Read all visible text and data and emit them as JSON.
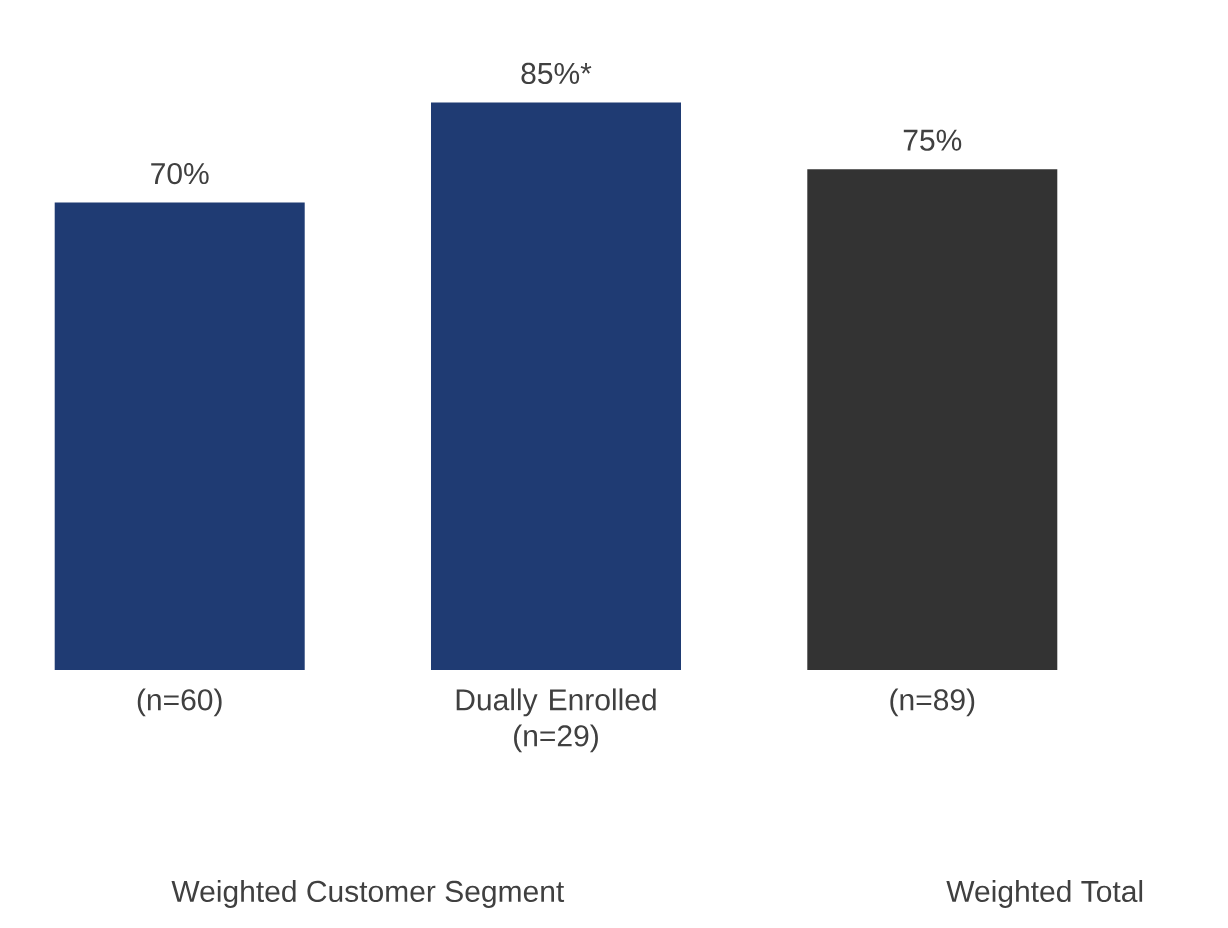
{
  "chart_data": {
    "type": "bar",
    "categories": [
      "(n=60)",
      "Dually Enrolled (n=29)",
      "(n=89)"
    ],
    "values": [
      70,
      85,
      75
    ],
    "value_labels": [
      "70%",
      "85%*",
      "75%"
    ],
    "colors": [
      "#1f3b73",
      "#1f3b73",
      "#333333"
    ],
    "annotations": [
      "Weighted Customer Segment",
      "Weighted Total"
    ]
  }
}
